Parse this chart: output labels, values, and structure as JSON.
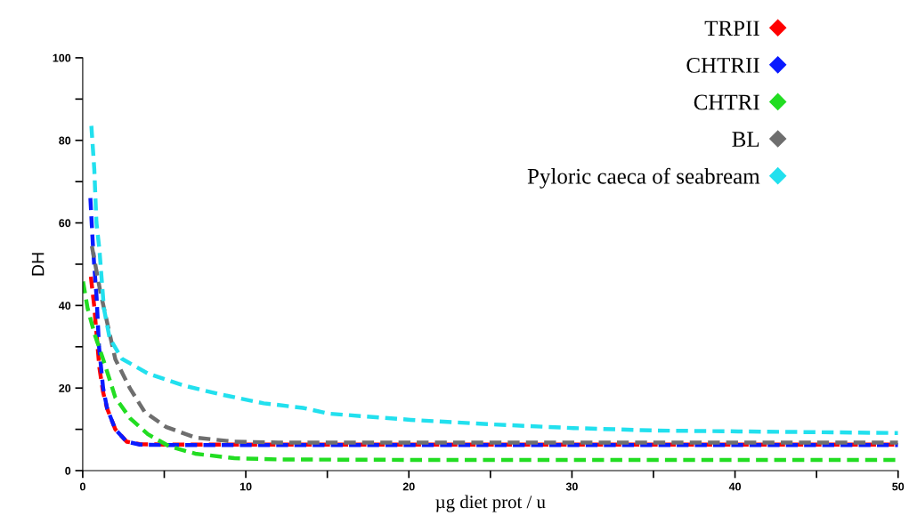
{
  "chart_data": {
    "type": "line",
    "xlabel": "µg diet prot / u",
    "ylabel": "DH",
    "xlim": [
      0,
      50
    ],
    "ylim": [
      0,
      100
    ],
    "xticks": [
      0,
      {
        "value": 5,
        "label": null
      },
      10,
      {
        "value": 15,
        "label": null
      },
      20,
      {
        "value": 25,
        "label": null
      },
      30,
      {
        "value": 35,
        "label": null
      },
      40,
      {
        "value": 45,
        "label": null
      },
      50
    ],
    "yticks": [
      0,
      {
        "value": 10,
        "label": null
      },
      20,
      {
        "value": 30,
        "label": null
      },
      40,
      {
        "value": 50,
        "label": null
      },
      60,
      {
        "value": 70,
        "label": null
      },
      80,
      {
        "value": 90,
        "label": null
      },
      100
    ],
    "grid": false,
    "legend": "top right",
    "line_style": "dashed",
    "series": [
      {
        "name": "TRPII",
        "color": "#ff0000",
        "x": [
          0.5,
          0.7,
          0.85,
          1.02,
          1.25,
          1.5,
          2.0,
          2.7,
          3.5,
          5,
          10,
          20,
          30,
          40,
          50
        ],
        "values": [
          47,
          40,
          33,
          25,
          19,
          15,
          10,
          7,
          6.4,
          6.3,
          6.3,
          6.3,
          6.3,
          6.3,
          6.3
        ]
      },
      {
        "name": "CHTRII",
        "color": "#0a1aff",
        "x": [
          0.47,
          0.55,
          0.62,
          0.7,
          0.85,
          1.0,
          1.25,
          1.5,
          2.0,
          2.7,
          3.5,
          5,
          10,
          20,
          30,
          40,
          50
        ],
        "values": [
          66,
          60,
          55,
          50,
          42,
          30,
          20,
          15,
          10,
          7,
          6.3,
          6.2,
          6.2,
          6.2,
          6.2,
          6.2,
          6.2
        ]
      },
      {
        "name": "CHTRI",
        "color": "#22dd22",
        "x": [
          0.02,
          0.3,
          0.75,
          1.3,
          2.0,
          2.9,
          4.0,
          5.3,
          6.9,
          9.3,
          12,
          20,
          30,
          40,
          50
        ],
        "values": [
          45.8,
          39.3,
          32.8,
          26.4,
          17.7,
          12.7,
          8.8,
          5.9,
          4.1,
          3.0,
          2.7,
          2.6,
          2.6,
          2.6,
          2.6
        ]
      },
      {
        "name": "BL",
        "color": "#6e6e6e",
        "x": [
          0.56,
          1.1,
          2.0,
          2.9,
          3.8,
          5.1,
          6.9,
          9.3,
          12,
          20,
          30,
          40,
          50
        ],
        "values": [
          54.4,
          42.9,
          27,
          19.9,
          14.2,
          10.6,
          8.0,
          7.0,
          6.8,
          6.8,
          6.8,
          6.8,
          6.8
        ]
      },
      {
        "name": "Pyloric caeca of seabream",
        "color": "#22e0ee",
        "x": [
          0.53,
          0.71,
          0.84,
          1.02,
          1.3,
          1.65,
          2.4,
          4.0,
          6.2,
          8.4,
          11.1,
          13.5,
          15.1,
          20.1,
          25.1,
          30.1,
          35.2,
          40.2,
          50
        ],
        "values": [
          83.5,
          73,
          60.1,
          53.7,
          39.3,
          32.1,
          27.1,
          23.5,
          20.6,
          18.5,
          16.3,
          15.2,
          13.8,
          12.3,
          11.2,
          10.3,
          9.7,
          9.5,
          9.1
        ]
      }
    ]
  }
}
